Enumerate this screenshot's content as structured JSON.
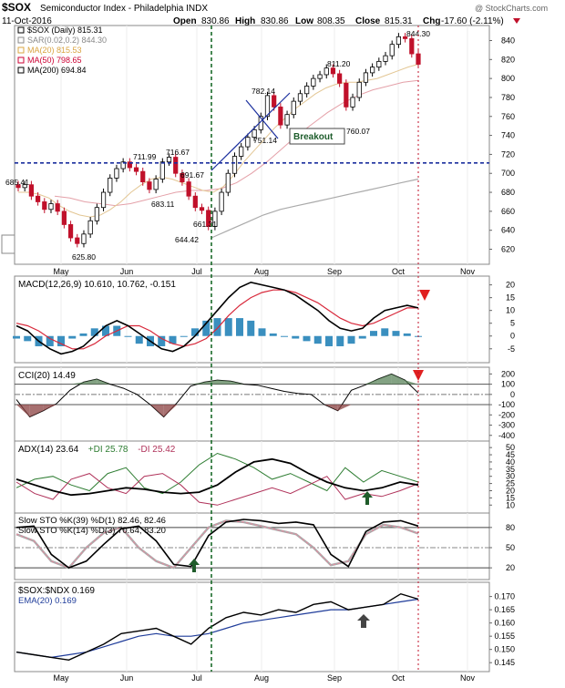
{
  "header": {
    "symbol": "$SOX",
    "name": "Semiconductor Index - Philadelphia INDX",
    "watermark": "@ StockCharts.com",
    "date": "11-Oct-2016",
    "quote": {
      "open_label": "Open",
      "open": "830.86",
      "high_label": "High",
      "high": "830.86",
      "low_label": "Low",
      "low": "808.35",
      "close_label": "Close",
      "close": "815.31",
      "chg_label": "Chg",
      "chg": "-17.60 (-2.11%)"
    }
  },
  "chart_data": [
    {
      "type": "candlestick",
      "panel": "price",
      "legend": [
        {
          "text": "$SOX (Daily) 815.31",
          "color": "#000000"
        },
        {
          "text": "SAR(0.02,0.2) 844.30",
          "color": "#888888"
        },
        {
          "text": "MA(20) 815.53",
          "color": "#d9a441"
        },
        {
          "text": "MA(50) 798.65",
          "color": "#cc0033"
        },
        {
          "text": "MA(200) 694.84",
          "color": "#000000"
        }
      ],
      "ylim": [
        608,
        852
      ],
      "yticks": [
        620,
        640,
        660,
        680,
        700,
        720,
        740,
        760,
        780,
        800,
        820,
        840
      ],
      "x_labels": [
        "May",
        "Jun",
        "Jul",
        "Aug",
        "Sep",
        "Oct",
        "Nov"
      ],
      "close_path": [
        685,
        688,
        676,
        670,
        662,
        668,
        660,
        646,
        632,
        626,
        636,
        650,
        664,
        680,
        695,
        705,
        712,
        706,
        702,
        691,
        683,
        694,
        712,
        717,
        700,
        691,
        676,
        664,
        661,
        644,
        660,
        680,
        700,
        718,
        728,
        738,
        746,
        760,
        782,
        770,
        751,
        762,
        776,
        784,
        792,
        800,
        804,
        811,
        805,
        795,
        770,
        780,
        796,
        806,
        812,
        818,
        824,
        836,
        844,
        842,
        826,
        815
      ],
      "ma20": [
        680,
        680,
        678,
        674,
        666,
        660,
        656,
        654,
        656,
        662,
        670,
        680,
        688,
        694,
        696,
        694,
        690,
        686,
        682,
        680,
        686,
        698,
        712,
        724,
        736,
        748,
        758,
        768,
        776,
        784,
        790,
        794,
        796,
        796,
        798,
        800,
        804,
        808,
        812,
        815
      ],
      "ma50": [
        676,
        674,
        670,
        668,
        666,
        668,
        672,
        676,
        680,
        682,
        682,
        684,
        690,
        700,
        712,
        726,
        740,
        752,
        764,
        774,
        782,
        788,
        792,
        796,
        798
      ],
      "ma200": [
        632,
        640,
        648,
        656,
        662,
        666,
        670,
        674,
        678,
        682,
        686,
        690,
        694
      ],
      "annotations": [
        "685.41",
        "625.80",
        "711.99",
        "683.11",
        "716.67",
        "691.67",
        "661.31",
        "644.42",
        "782.14",
        "751.14",
        "811.20",
        "760.07",
        "844.30",
        "Breakout"
      ],
      "horizontal_line": 711,
      "vertical_events": [
        "early Jul (green dashed)",
        "last bar (red dotted)"
      ]
    },
    {
      "type": "line",
      "panel": "macd",
      "legend_text": "MACD(12,26,9) 10.610, 10.762, -0.151",
      "ylim": [
        -9,
        22
      ],
      "yticks": [
        -5,
        0,
        5,
        10,
        15,
        20
      ],
      "macd": [
        4,
        2,
        -2,
        -5,
        -7,
        -6,
        -4,
        0,
        4,
        6,
        4,
        1,
        -2,
        -5,
        -6,
        -4,
        0,
        5,
        10,
        15,
        19,
        21,
        20,
        19,
        18,
        16,
        13,
        10,
        6,
        3,
        2,
        3,
        7,
        10,
        11,
        12,
        11
      ],
      "signal": [
        5,
        4,
        2,
        -1,
        -3,
        -5,
        -5,
        -3,
        0,
        2,
        4,
        4,
        2,
        -1,
        -3,
        -4,
        -3,
        -1,
        3,
        8,
        12,
        15,
        17,
        18,
        18,
        17,
        15,
        13,
        10,
        7,
        5,
        4,
        5,
        7,
        9,
        11,
        11
      ],
      "histogram": [
        -1,
        -2,
        -4,
        -4,
        -4,
        -1,
        1,
        3,
        4,
        4,
        0,
        -3,
        -4,
        -4,
        -3,
        0,
        3,
        6,
        7,
        7,
        7,
        6,
        3,
        1,
        0,
        -1,
        -2,
        -3,
        -4,
        -4,
        -3,
        -1,
        2,
        3,
        2,
        1,
        0
      ]
    },
    {
      "type": "line",
      "panel": "cci",
      "legend_text": "CCI(20) 14.49",
      "ylim": [
        -420,
        230
      ],
      "yticks": [
        -400,
        -300,
        -200,
        -100,
        0,
        100,
        200
      ],
      "cci_path": [
        -50,
        -220,
        -160,
        -90,
        40,
        120,
        150,
        100,
        60,
        0,
        -100,
        -220,
        -80,
        80,
        120,
        140,
        130,
        100,
        90,
        60,
        30,
        10,
        0,
        -100,
        -160,
        40,
        90,
        150,
        200,
        140,
        14
      ]
    },
    {
      "type": "line",
      "panel": "adx",
      "legend": [
        {
          "text": "ADX(14) 23.64",
          "color": "#000000"
        },
        {
          "text": "+DI 25.78",
          "color": "#2e7d32"
        },
        {
          "text": "-DI 25.42",
          "color": "#b0325a"
        }
      ],
      "ylim": [
        7,
        52
      ],
      "yticks": [
        10,
        15,
        20,
        25,
        30,
        35,
        40,
        45,
        50
      ],
      "adx": [
        28,
        24,
        20,
        17,
        18,
        20,
        22,
        21,
        19,
        18,
        19,
        24,
        33,
        40,
        42,
        39,
        32,
        26,
        22,
        20,
        22,
        26,
        24
      ],
      "plus_di": [
        22,
        28,
        30,
        24,
        20,
        32,
        36,
        22,
        18,
        26,
        38,
        46,
        42,
        36,
        28,
        32,
        26,
        20,
        36,
        26,
        34,
        30,
        26
      ],
      "minus_di": [
        26,
        18,
        14,
        28,
        32,
        22,
        18,
        30,
        32,
        24,
        12,
        10,
        14,
        18,
        22,
        18,
        24,
        30,
        14,
        18,
        16,
        20,
        25
      ]
    },
    {
      "type": "line",
      "panel": "stoch",
      "legend": [
        {
          "text": "Slow STO %K(39) %D(1) 82.46, 82.46",
          "color": "#000000"
        },
        {
          "text": "Slow STO %K(14) %D(3) 70.64, 83.20",
          "color": "#e88aa0"
        }
      ],
      "ylim": [
        8,
        96
      ],
      "yticks": [
        20,
        50,
        80
      ],
      "stoch39": [
        80,
        82,
        40,
        20,
        30,
        55,
        78,
        82,
        60,
        25,
        22,
        68,
        88,
        92,
        90,
        86,
        88,
        84,
        40,
        22,
        74,
        88,
        90,
        82
      ],
      "stoch14": [
        70,
        60,
        30,
        20,
        50,
        72,
        80,
        50,
        30,
        20,
        50,
        80,
        90,
        88,
        82,
        76,
        70,
        50,
        24,
        30,
        70,
        84,
        80,
        71
      ]
    },
    {
      "type": "line",
      "panel": "ratio",
      "legend": [
        {
          "text": "$SOX:$NDX 0.169",
          "color": "#000000"
        },
        {
          "text": "EMA(20) 0.169",
          "color": "#1f3c9a"
        }
      ],
      "ylim": [
        0.143,
        0.174
      ],
      "yticks": [
        0.145,
        0.15,
        0.155,
        0.16,
        0.165,
        0.17
      ],
      "ratio": [
        0.149,
        0.148,
        0.147,
        0.146,
        0.149,
        0.152,
        0.156,
        0.157,
        0.158,
        0.155,
        0.152,
        0.158,
        0.162,
        0.164,
        0.163,
        0.165,
        0.164,
        0.167,
        0.168,
        0.165,
        0.166,
        0.167,
        0.171,
        0.169
      ],
      "ema": [
        0.149,
        0.148,
        0.147,
        0.148,
        0.149,
        0.151,
        0.153,
        0.155,
        0.156,
        0.155,
        0.155,
        0.156,
        0.158,
        0.16,
        0.161,
        0.162,
        0.163,
        0.164,
        0.165,
        0.165,
        0.166,
        0.167,
        0.168,
        0.169
      ]
    }
  ]
}
